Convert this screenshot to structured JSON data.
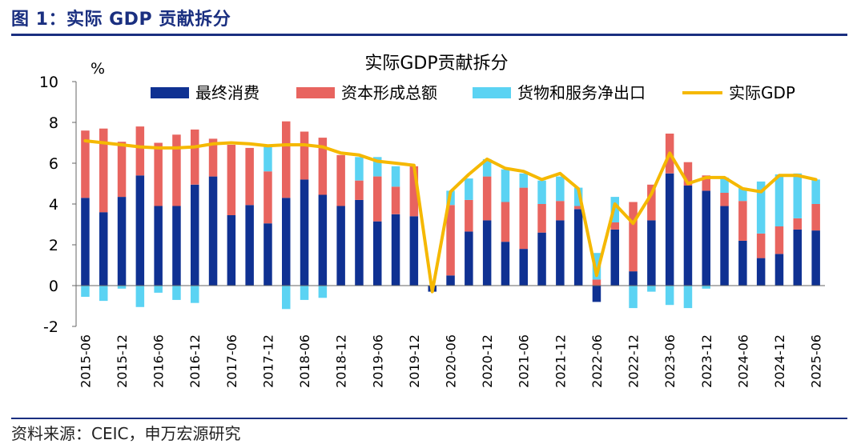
{
  "figure": {
    "title": "图 1：实际 GDP 贡献拆分",
    "source": "资料来源：CEIC，申万宏源研究"
  },
  "colors": {
    "consumption": "#0f3192",
    "capital": "#e8645f",
    "net_exports": "#5bd3f3",
    "gdp": "#f5b800",
    "title_blue": "#1a2f80"
  },
  "chart_data": {
    "type": "bar",
    "stacked": true,
    "title": "实际GDP贡献拆分",
    "unit_label": "%",
    "ylim": [
      -2,
      10
    ],
    "yticks": [
      -2,
      0,
      2,
      4,
      6,
      8,
      10
    ],
    "grid": false,
    "legend_position": "top",
    "categories": [
      "2015-06",
      "2015-09",
      "2015-12",
      "2016-03",
      "2016-06",
      "2016-09",
      "2016-12",
      "2017-03",
      "2017-06",
      "2017-09",
      "2017-12",
      "2018-03",
      "2018-06",
      "2018-09",
      "2018-12",
      "2019-03",
      "2019-06",
      "2019-09",
      "2019-12",
      "2020-03",
      "2020-06",
      "2020-09",
      "2020-12",
      "2021-03",
      "2021-06",
      "2021-09",
      "2021-12",
      "2022-03",
      "2022-06",
      "2022-09",
      "2022-12",
      "2023-03",
      "2023-06",
      "2023-09",
      "2023-12",
      "2024-03",
      "2024-06",
      "2024-09",
      "2024-12",
      "2025-03",
      "2025-06"
    ],
    "tick_labels": [
      "2015-06",
      "",
      "2015-12",
      "",
      "2016-06",
      "",
      "2016-12",
      "",
      "2017-06",
      "",
      "2017-12",
      "",
      "2018-06",
      "",
      "2018-12",
      "",
      "2019-06",
      "",
      "2019-12",
      "",
      "2020-06",
      "",
      "2020-12",
      "",
      "2021-06",
      "",
      "2021-12",
      "",
      "2022-06",
      "",
      "2022-12",
      "",
      "2023-06",
      "",
      "2023-12",
      "",
      "2024-06",
      "",
      "2024-12",
      "",
      "2025-06"
    ],
    "series": [
      {
        "name": "最终消费",
        "kind": "bar",
        "values": [
          4.3,
          3.6,
          4.35,
          5.4,
          3.9,
          3.9,
          4.95,
          5.35,
          3.45,
          3.95,
          3.05,
          4.3,
          5.2,
          4.45,
          3.9,
          4.2,
          3.15,
          3.5,
          3.4,
          -0.3,
          0.5,
          2.65,
          3.2,
          2.15,
          1.8,
          2.6,
          3.2,
          3.75,
          -0.8,
          2.75,
          0.7,
          3.2,
          5.5,
          4.9,
          4.65,
          3.9,
          2.2,
          1.35,
          1.55,
          2.75,
          2.7
        ]
      },
      {
        "name": "资本形成总额",
        "kind": "bar",
        "values": [
          3.3,
          4.1,
          2.7,
          2.4,
          3.1,
          3.5,
          2.7,
          1.85,
          3.45,
          2.8,
          2.55,
          3.75,
          2.35,
          2.8,
          2.5,
          0.95,
          2.2,
          1.35,
          2.45,
          0.0,
          3.45,
          1.55,
          2.15,
          1.95,
          3.0,
          1.4,
          0.95,
          0.15,
          0.3,
          0.35,
          3.4,
          1.75,
          1.95,
          1.15,
          0.75,
          0.65,
          1.95,
          1.2,
          1.35,
          0.55,
          1.3
        ]
      },
      {
        "name": "货物和服务净出口",
        "kind": "bar",
        "values": [
          -0.55,
          -0.75,
          -0.15,
          -1.05,
          -0.35,
          -0.7,
          -0.85,
          0.0,
          0.0,
          0.0,
          1.2,
          -1.15,
          -0.7,
          -0.6,
          0.0,
          1.15,
          0.95,
          1.0,
          0.0,
          0.0,
          0.7,
          1.05,
          0.85,
          1.6,
          0.7,
          1.15,
          1.2,
          0.9,
          1.3,
          1.25,
          -1.1,
          -0.3,
          -0.95,
          -1.1,
          -0.15,
          0.75,
          0.65,
          2.55,
          2.55,
          2.2,
          1.2
        ]
      },
      {
        "name": "实际GDP",
        "kind": "line",
        "values": [
          7.1,
          7.0,
          6.9,
          6.8,
          6.75,
          6.75,
          6.8,
          6.95,
          7.0,
          6.95,
          6.85,
          6.9,
          6.9,
          6.8,
          6.5,
          6.4,
          6.1,
          6.0,
          5.9,
          -0.3,
          4.6,
          5.45,
          6.2,
          5.75,
          5.6,
          5.2,
          5.5,
          4.75,
          0.5,
          4.0,
          3.05,
          4.5,
          6.5,
          5.0,
          5.3,
          5.3,
          4.75,
          4.6,
          5.4,
          5.4,
          5.2
        ]
      }
    ]
  }
}
